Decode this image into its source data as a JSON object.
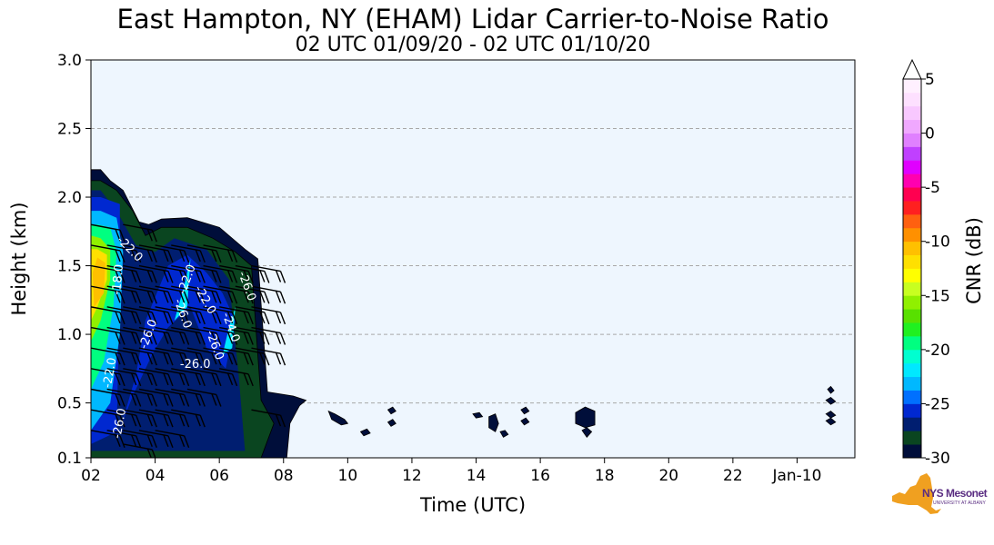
{
  "chart_data": {
    "type": "heatmap",
    "title": "East Hampton, NY (EHAM) Lidar Carrier-to-Noise Ratio",
    "subtitle": "02 UTC 01/09/20 - 02 UTC 01/10/20",
    "xlabel": "Time (UTC)",
    "ylabel": "Height (km)",
    "xlim": [
      2,
      25.8
    ],
    "ylim": [
      0.1,
      3.0
    ],
    "x_ticks": [
      {
        "value": 2,
        "label": "02"
      },
      {
        "value": 4,
        "label": "04"
      },
      {
        "value": 6,
        "label": "06"
      },
      {
        "value": 8,
        "label": "08"
      },
      {
        "value": 10,
        "label": "10"
      },
      {
        "value": 12,
        "label": "12"
      },
      {
        "value": 14,
        "label": "14"
      },
      {
        "value": 16,
        "label": "16"
      },
      {
        "value": 18,
        "label": "18"
      },
      {
        "value": 20,
        "label": "20"
      },
      {
        "value": 22,
        "label": "22"
      },
      {
        "value": 24,
        "label": "Jan-10"
      }
    ],
    "y_ticks": [
      {
        "value": 0.1,
        "label": "0.1"
      },
      {
        "value": 0.5,
        "label": "0.5"
      },
      {
        "value": 1.0,
        "label": "1.0"
      },
      {
        "value": 1.5,
        "label": "1.5"
      },
      {
        "value": 2.0,
        "label": "2.0"
      },
      {
        "value": 2.5,
        "label": "2.5"
      },
      {
        "value": 3.0,
        "label": "3.0"
      }
    ],
    "grid": {
      "horizontal": true,
      "style": "dashed"
    },
    "background_color": "#eef6fe",
    "colorbar": {
      "label": "CNR (dB)",
      "min": -30,
      "max": 5,
      "extend": "max",
      "ticks": [
        {
          "value": 5,
          "label": "5"
        },
        {
          "value": 0,
          "label": "0"
        },
        {
          "value": -5,
          "label": "-5"
        },
        {
          "value": -10,
          "label": "-10"
        },
        {
          "value": -15,
          "label": "-15"
        },
        {
          "value": -20,
          "label": "-20"
        },
        {
          "value": -25,
          "label": "-25"
        },
        {
          "value": -30,
          "label": "-30"
        }
      ],
      "colors": [
        "#000e3a",
        "#0a4520",
        "#001e70",
        "#0028d0",
        "#0070ff",
        "#00b8ff",
        "#00e8ff",
        "#00ffd0",
        "#00ff80",
        "#20f020",
        "#58e000",
        "#90f000",
        "#c8ff20",
        "#ffff00",
        "#ffe000",
        "#ffc000",
        "#ff9000",
        "#ff6010",
        "#ff2020",
        "#ff0050",
        "#ff00b0",
        "#e000ff",
        "#c040ff",
        "#e080ff",
        "#f0a8ff",
        "#f8c8ff",
        "#fde0ff",
        "#fff0ff"
      ]
    },
    "cnr_regions": [
      {
        "level": -30,
        "polygon": [
          [
            2,
            0.1
          ],
          [
            8.1,
            0.1
          ],
          [
            8.2,
            0.35
          ],
          [
            8.5,
            0.48
          ],
          [
            8.7,
            0.52
          ],
          [
            8.3,
            0.55
          ],
          [
            7.5,
            0.58
          ],
          [
            7.2,
            1.55
          ],
          [
            6.8,
            1.62
          ],
          [
            6.0,
            1.78
          ],
          [
            5.0,
            1.85
          ],
          [
            4.2,
            1.84
          ],
          [
            3.8,
            1.8
          ],
          [
            3.5,
            1.82
          ],
          [
            3.0,
            2.05
          ],
          [
            2.6,
            2.12
          ],
          [
            2.3,
            2.2
          ],
          [
            2,
            2.2
          ]
        ]
      },
      {
        "level": -29,
        "polygon": [
          [
            2,
            0.1
          ],
          [
            7.3,
            0.1
          ],
          [
            7.7,
            0.35
          ],
          [
            7.3,
            0.52
          ],
          [
            7.0,
            1.5
          ],
          [
            6.5,
            1.6
          ],
          [
            5.8,
            1.7
          ],
          [
            5.0,
            1.78
          ],
          [
            4.2,
            1.78
          ],
          [
            3.7,
            1.72
          ],
          [
            3.3,
            1.9
          ],
          [
            2.8,
            2.05
          ],
          [
            2.3,
            2.12
          ],
          [
            2,
            2.12
          ]
        ]
      },
      {
        "level": -28,
        "polygon": [
          [
            2,
            0.15
          ],
          [
            6.8,
            0.15
          ],
          [
            6.6,
            0.7
          ],
          [
            6.3,
            1.4
          ],
          [
            5.6,
            1.62
          ],
          [
            4.6,
            1.7
          ],
          [
            4.0,
            1.6
          ],
          [
            3.4,
            1.65
          ],
          [
            2.8,
            1.9
          ],
          [
            2.3,
            2.05
          ],
          [
            2,
            2.05
          ]
        ]
      },
      {
        "level": -26,
        "polygon": [
          [
            2,
            0.2
          ],
          [
            2.9,
            0.3
          ],
          [
            3.4,
            0.7
          ],
          [
            3.7,
            1.1
          ],
          [
            4.4,
            1.5
          ],
          [
            5.0,
            1.58
          ],
          [
            5.6,
            1.45
          ],
          [
            6.1,
            1.3
          ],
          [
            6.5,
            1.1
          ],
          [
            6.2,
            0.75
          ],
          [
            5.6,
            0.9
          ],
          [
            5.1,
            1.2
          ],
          [
            4.4,
            1.05
          ],
          [
            3.9,
            0.85
          ],
          [
            3.3,
            0.55
          ],
          [
            2.8,
            0.25
          ],
          [
            2.9,
            1.4
          ],
          [
            2.9,
            1.95
          ],
          [
            2.3,
            2.0
          ],
          [
            2,
            2.0
          ]
        ]
      },
      {
        "level": -24,
        "polygon": [
          [
            2,
            0.3
          ],
          [
            2.6,
            0.5
          ],
          [
            2.9,
            1.0
          ],
          [
            3.0,
            1.6
          ],
          [
            2.8,
            1.85
          ],
          [
            2.3,
            1.9
          ],
          [
            2,
            1.9
          ]
        ]
      },
      {
        "level": -22,
        "polygon": [
          [
            4.6,
            1.1
          ],
          [
            4.9,
            1.35
          ],
          [
            5.1,
            1.55
          ],
          [
            5.0,
            1.2
          ]
        ]
      },
      {
        "level": -22,
        "polygon": [
          [
            6.1,
            0.85
          ],
          [
            6.3,
            1.05
          ],
          [
            6.5,
            1.2
          ],
          [
            6.4,
            0.9
          ]
        ]
      },
      {
        "level": -20,
        "polygon": [
          [
            2,
            0.6
          ],
          [
            2.4,
            0.8
          ],
          [
            2.7,
            1.2
          ],
          [
            2.8,
            1.6
          ],
          [
            2.6,
            1.78
          ],
          [
            2.2,
            1.8
          ],
          [
            2,
            1.8
          ]
        ]
      },
      {
        "level": -16,
        "polygon": [
          [
            2,
            0.95
          ],
          [
            2.3,
            1.1
          ],
          [
            2.6,
            1.4
          ],
          [
            2.6,
            1.62
          ],
          [
            2.3,
            1.7
          ],
          [
            2,
            1.72
          ]
        ]
      },
      {
        "level": -12,
        "polygon": [
          [
            2,
            1.1
          ],
          [
            2.2,
            1.2
          ],
          [
            2.5,
            1.4
          ],
          [
            2.5,
            1.58
          ],
          [
            2.2,
            1.62
          ],
          [
            2,
            1.62
          ]
        ]
      },
      {
        "level": -10,
        "polygon": [
          [
            2.1,
            1.2
          ],
          [
            2.4,
            1.3
          ],
          [
            2.45,
            1.52
          ],
          [
            2.2,
            1.56
          ],
          [
            2.05,
            1.45
          ]
        ]
      },
      {
        "level": -30,
        "polygon": [
          [
            9.4,
            0.44
          ],
          [
            9.6,
            0.42
          ],
          [
            9.9,
            0.38
          ],
          [
            10.0,
            0.35
          ],
          [
            9.8,
            0.34
          ],
          [
            9.5,
            0.38
          ]
        ]
      },
      {
        "level": -30,
        "polygon": [
          [
            10.4,
            0.29
          ],
          [
            10.6,
            0.31
          ],
          [
            10.7,
            0.28
          ],
          [
            10.5,
            0.26
          ]
        ]
      },
      {
        "level": -30,
        "polygon": [
          [
            11.25,
            0.45
          ],
          [
            11.4,
            0.47
          ],
          [
            11.5,
            0.44
          ],
          [
            11.35,
            0.42
          ]
        ]
      },
      {
        "level": -30,
        "polygon": [
          [
            11.25,
            0.36
          ],
          [
            11.4,
            0.38
          ],
          [
            11.5,
            0.35
          ],
          [
            11.35,
            0.33
          ]
        ]
      },
      {
        "level": -30,
        "polygon": [
          [
            13.9,
            0.42
          ],
          [
            14.1,
            0.43
          ],
          [
            14.2,
            0.4
          ],
          [
            14.0,
            0.39
          ]
        ]
      },
      {
        "level": -30,
        "polygon": [
          [
            14.4,
            0.4
          ],
          [
            14.6,
            0.42
          ],
          [
            14.7,
            0.35
          ],
          [
            14.6,
            0.29
          ],
          [
            14.4,
            0.32
          ]
        ]
      },
      {
        "level": -30,
        "polygon": [
          [
            14.75,
            0.29
          ],
          [
            14.9,
            0.3
          ],
          [
            15.0,
            0.27
          ],
          [
            14.85,
            0.25
          ]
        ]
      },
      {
        "level": -30,
        "polygon": [
          [
            15.4,
            0.45
          ],
          [
            15.55,
            0.47
          ],
          [
            15.65,
            0.44
          ],
          [
            15.5,
            0.42
          ]
        ]
      },
      {
        "level": -30,
        "polygon": [
          [
            15.4,
            0.37
          ],
          [
            15.55,
            0.39
          ],
          [
            15.65,
            0.36
          ],
          [
            15.5,
            0.34
          ]
        ]
      },
      {
        "level": -30,
        "polygon": [
          [
            17.1,
            0.43
          ],
          [
            17.4,
            0.47
          ],
          [
            17.7,
            0.44
          ],
          [
            17.7,
            0.34
          ],
          [
            17.4,
            0.32
          ],
          [
            17.1,
            0.35
          ]
        ]
      },
      {
        "level": -30,
        "polygon": [
          [
            17.3,
            0.3
          ],
          [
            17.45,
            0.32
          ],
          [
            17.6,
            0.29
          ],
          [
            17.45,
            0.25
          ]
        ]
      },
      {
        "level": -30,
        "polygon": [
          [
            24.95,
            0.6
          ],
          [
            25.05,
            0.62
          ],
          [
            25.15,
            0.59
          ],
          [
            25.05,
            0.57
          ]
        ]
      },
      {
        "level": -30,
        "polygon": [
          [
            24.9,
            0.52
          ],
          [
            25.05,
            0.54
          ],
          [
            25.2,
            0.51
          ],
          [
            25.05,
            0.49
          ]
        ]
      },
      {
        "level": -30,
        "polygon": [
          [
            24.9,
            0.42
          ],
          [
            25.05,
            0.44
          ],
          [
            25.2,
            0.41
          ],
          [
            25.05,
            0.39
          ]
        ]
      },
      {
        "level": -30,
        "polygon": [
          [
            24.9,
            0.37
          ],
          [
            25.05,
            0.39
          ],
          [
            25.2,
            0.36
          ],
          [
            25.05,
            0.34
          ]
        ]
      }
    ],
    "contour_labels": [
      {
        "x": 3.8,
        "y": 1.0,
        "text": "-26.0",
        "rotate": -70
      },
      {
        "x": 4.85,
        "y": 1.15,
        "text": "-26.0",
        "rotate": 70
      },
      {
        "x": 5.25,
        "y": 0.78,
        "text": "-26.0",
        "rotate": 0
      },
      {
        "x": 2.9,
        "y": 0.35,
        "text": "-26.0",
        "rotate": -80
      },
      {
        "x": 2.6,
        "y": 0.72,
        "text": "-22.0",
        "rotate": -80
      },
      {
        "x": 2.85,
        "y": 1.4,
        "text": "-18.0",
        "rotate": -85
      },
      {
        "x": 3.2,
        "y": 1.62,
        "text": "-22.0",
        "rotate": 45
      },
      {
        "x": 5.0,
        "y": 1.4,
        "text": "-22.0",
        "rotate": -70
      },
      {
        "x": 5.55,
        "y": 1.25,
        "text": "-22.0",
        "rotate": 60
      },
      {
        "x": 6.35,
        "y": 1.05,
        "text": "-24.0",
        "rotate": 70
      },
      {
        "x": 6.85,
        "y": 1.35,
        "text": "-26.0",
        "rotate": 70
      },
      {
        "x": 5.85,
        "y": 0.92,
        "text": "-26.0",
        "rotate": 70
      }
    ],
    "wind_barbs": [
      {
        "x": 2.0,
        "heights": [
          0.3,
          0.45,
          0.6,
          0.75,
          0.9,
          1.05,
          1.2,
          1.35,
          1.5,
          1.65,
          1.8
        ]
      },
      {
        "x": 2.5,
        "heights": [
          0.3,
          0.45,
          0.6,
          0.75,
          0.9,
          1.05,
          1.2,
          1.35,
          1.5,
          1.65
        ]
      },
      {
        "x": 3.0,
        "heights": [
          0.2,
          0.3,
          0.45,
          0.6,
          0.75,
          0.9,
          1.05,
          1.2,
          1.35,
          1.5,
          1.65,
          1.8
        ]
      },
      {
        "x": 3.5,
        "heights": [
          0.3,
          0.45,
          0.6,
          0.75,
          0.9,
          1.05,
          1.2,
          1.35,
          1.5,
          1.65
        ]
      },
      {
        "x": 4.0,
        "heights": [
          0.3,
          0.45,
          0.6,
          0.75,
          0.9,
          1.05,
          1.2,
          1.35,
          1.5,
          1.65
        ]
      },
      {
        "x": 4.5,
        "heights": [
          0.45,
          0.6,
          0.75,
          0.9,
          1.05,
          1.2,
          1.35,
          1.5,
          1.65
        ]
      },
      {
        "x": 5.0,
        "heights": [
          0.6,
          0.75,
          0.9,
          1.05,
          1.2,
          1.35,
          1.5,
          1.65
        ]
      },
      {
        "x": 5.5,
        "heights": [
          0.75,
          0.9,
          1.05,
          1.2,
          1.35,
          1.5,
          1.65
        ]
      },
      {
        "x": 6.0,
        "heights": [
          0.75,
          0.9,
          1.05,
          1.2,
          1.35,
          1.5
        ]
      },
      {
        "x": 6.5,
        "heights": [
          0.9,
          1.05,
          1.2,
          1.35,
          1.5
        ]
      },
      {
        "x": 7.0,
        "heights": [
          0.45,
          0.9,
          1.05,
          1.2,
          1.35,
          1.5
        ]
      }
    ],
    "logo_text": "NYS Mesonet",
    "logo_subtext": "UNIVERSITY AT ALBANY"
  }
}
